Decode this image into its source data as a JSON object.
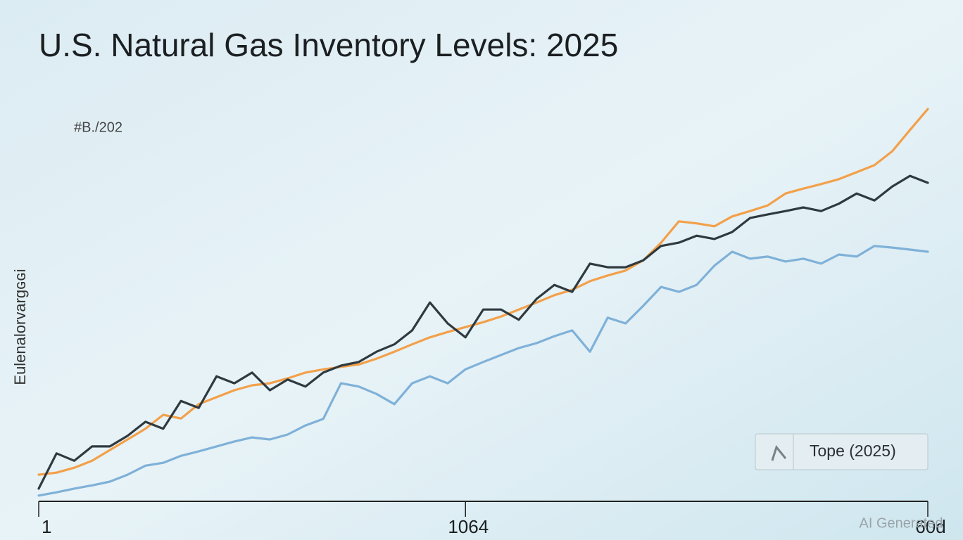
{
  "chart_data": {
    "type": "line",
    "title": "U.S. Natural Gas Inventory Levels: 2025",
    "subtitle": "#B./202",
    "y_label": "Eulenalorvargɢɢi",
    "watermark": "AI Generated",
    "x": [
      0,
      1,
      2,
      3,
      4,
      5,
      6,
      7,
      8,
      9,
      10,
      11,
      12,
      13,
      14,
      15,
      16,
      17,
      18,
      19,
      20,
      21,
      22,
      23,
      24,
      25,
      26,
      27,
      28,
      29,
      30,
      31,
      32,
      33,
      34,
      35,
      36,
      37,
      38,
      39,
      40,
      41,
      42,
      43,
      44,
      45,
      46,
      47,
      48,
      49,
      50
    ],
    "xlim": [
      0,
      50
    ],
    "xticks": [
      {
        "value": 0,
        "label": "1"
      },
      {
        "value": 24,
        "label": "1064"
      },
      {
        "value": 50,
        "label": "60d"
      }
    ],
    "ylim": [
      0,
      100
    ],
    "legend": "bottom-right",
    "series": [
      {
        "color": "#f3a04a",
        "values": [
          6.5,
          7.0,
          8.2,
          9.9,
          12.5,
          15.1,
          17.7,
          21.1,
          20.2,
          23.7,
          25.4,
          27.1,
          28.3,
          28.8,
          30.0,
          31.4,
          32.2,
          32.8,
          33.4,
          34.8,
          36.5,
          38.3,
          40.0,
          41.3,
          42.5,
          43.7,
          45.1,
          46.8,
          48.5,
          50.3,
          51.6,
          53.7,
          55.1,
          56.3,
          58.8,
          63.1,
          68.3,
          67.8,
          67.1,
          69.5,
          70.8,
          72.2,
          75.1,
          76.3,
          77.4,
          78.6,
          80.3,
          82.0,
          85.4,
          90.6,
          95.7
        ]
      },
      {
        "color": "#7fb1d8",
        "values": [
          1.4,
          2.2,
          3.1,
          3.9,
          4.8,
          6.5,
          8.7,
          9.4,
          11.1,
          12.2,
          13.4,
          14.6,
          15.6,
          15.1,
          16.3,
          18.5,
          20.1,
          28.8,
          28.0,
          26.2,
          23.7,
          28.8,
          30.5,
          28.8,
          32.2,
          34.0,
          35.7,
          37.4,
          38.6,
          40.3,
          41.7,
          36.5,
          44.8,
          43.4,
          47.7,
          52.3,
          51.1,
          52.8,
          57.5,
          60.9,
          59.2,
          59.7,
          58.5,
          59.2,
          58.0,
          60.2,
          59.7,
          62.3,
          61.9,
          61.4,
          60.9
        ]
      },
      {
        "name": "Tope (2025)",
        "color": "#2e3a40",
        "values": [
          3.1,
          11.7,
          9.9,
          13.4,
          13.4,
          16.0,
          19.4,
          17.7,
          24.5,
          22.8,
          30.5,
          28.8,
          31.4,
          27.1,
          29.7,
          28.0,
          31.4,
          33.1,
          34.0,
          36.5,
          38.3,
          41.7,
          48.5,
          43.4,
          40.0,
          46.8,
          46.8,
          44.3,
          49.4,
          52.8,
          51.1,
          58.0,
          57.1,
          57.1,
          58.8,
          62.3,
          63.1,
          64.8,
          64.0,
          65.7,
          69.1,
          70.0,
          70.8,
          71.7,
          70.8,
          72.6,
          75.1,
          73.4,
          76.8,
          79.4,
          77.7
        ]
      }
    ]
  }
}
